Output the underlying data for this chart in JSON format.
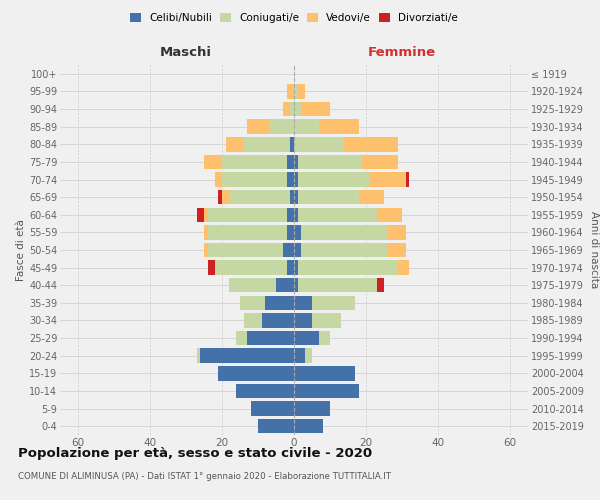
{
  "age_groups": [
    "0-4",
    "5-9",
    "10-14",
    "15-19",
    "20-24",
    "25-29",
    "30-34",
    "35-39",
    "40-44",
    "45-49",
    "50-54",
    "55-59",
    "60-64",
    "65-69",
    "70-74",
    "75-79",
    "80-84",
    "85-89",
    "90-94",
    "95-99",
    "100+"
  ],
  "birth_years": [
    "2015-2019",
    "2010-2014",
    "2005-2009",
    "2000-2004",
    "1995-1999",
    "1990-1994",
    "1985-1989",
    "1980-1984",
    "1975-1979",
    "1970-1974",
    "1965-1969",
    "1960-1964",
    "1955-1959",
    "1950-1954",
    "1945-1949",
    "1940-1944",
    "1935-1939",
    "1930-1934",
    "1925-1929",
    "1920-1924",
    "≤ 1919"
  ],
  "maschi": {
    "celibi": [
      10,
      12,
      16,
      21,
      26,
      13,
      9,
      8,
      5,
      2,
      3,
      2,
      2,
      1,
      2,
      2,
      1,
      0,
      0,
      0,
      0
    ],
    "coniugati": [
      0,
      0,
      0,
      0,
      1,
      3,
      5,
      7,
      13,
      20,
      21,
      22,
      22,
      17,
      18,
      18,
      13,
      7,
      1,
      0,
      0
    ],
    "vedovi": [
      0,
      0,
      0,
      0,
      0,
      0,
      0,
      0,
      0,
      0,
      1,
      1,
      1,
      2,
      2,
      5,
      5,
      6,
      2,
      2,
      0
    ],
    "divorziati": [
      0,
      0,
      0,
      0,
      0,
      0,
      0,
      0,
      0,
      2,
      0,
      0,
      2,
      1,
      0,
      0,
      0,
      0,
      0,
      0,
      0
    ]
  },
  "femmine": {
    "nubili": [
      8,
      10,
      18,
      17,
      3,
      7,
      5,
      5,
      1,
      1,
      2,
      2,
      1,
      1,
      1,
      1,
      0,
      0,
      0,
      0,
      0
    ],
    "coniugate": [
      0,
      0,
      0,
      0,
      2,
      3,
      8,
      12,
      22,
      28,
      24,
      24,
      22,
      17,
      20,
      18,
      14,
      7,
      2,
      1,
      0
    ],
    "vedove": [
      0,
      0,
      0,
      0,
      0,
      0,
      0,
      0,
      0,
      3,
      5,
      5,
      7,
      7,
      10,
      10,
      15,
      11,
      8,
      2,
      0
    ],
    "divorziate": [
      0,
      0,
      0,
      0,
      0,
      0,
      0,
      0,
      2,
      0,
      0,
      0,
      0,
      0,
      1,
      0,
      0,
      0,
      0,
      0,
      0
    ]
  },
  "color_celibi": "#4472a8",
  "color_coniugati": "#c5d8a4",
  "color_vedovi": "#ffc06e",
  "color_divorziati": "#cc2222",
  "xlim": 65,
  "title": "Popolazione per età, sesso e stato civile - 2020",
  "subtitle": "COMUNE DI ALIMINUSA (PA) - Dati ISTAT 1° gennaio 2020 - Elaborazione TUTTITALIA.IT",
  "ylabel": "Fasce di età",
  "ylabel2": "Anni di nascita",
  "xlabel_maschi": "Maschi",
  "xlabel_femmine": "Femmine",
  "bg_color": "#f0f0f0",
  "plot_bg": "#f0f0f0",
  "legend_labels": [
    "Celibi/Nubili",
    "Coniugati/e",
    "Vedovi/e",
    "Divorziati/e"
  ]
}
